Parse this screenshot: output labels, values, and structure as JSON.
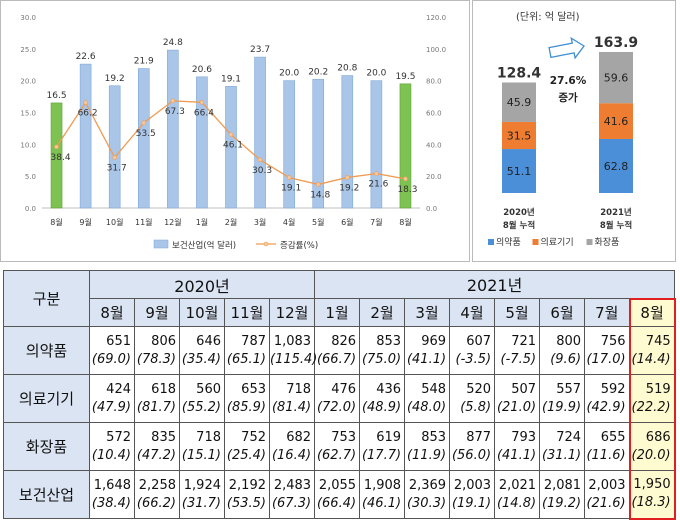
{
  "chart_data": [
    {
      "type": "bar+line",
      "categories": [
        "8월",
        "9월",
        "10월",
        "11월",
        "12월",
        "1월",
        "2월",
        "3월",
        "4월",
        "5월",
        "6월",
        "7월",
        "8월"
      ],
      "series": [
        {
          "name": "보건산업(억 달러)",
          "kind": "bar",
          "axis": "left",
          "values": [
            16.5,
            22.6,
            19.2,
            21.9,
            24.8,
            20.6,
            19.1,
            23.7,
            20.0,
            20.2,
            20.8,
            20.0,
            19.5
          ]
        },
        {
          "name": "증감률(%)",
          "kind": "line",
          "axis": "right",
          "values": [
            38.4,
            66.2,
            31.7,
            53.5,
            67.3,
            66.4,
            46.1,
            30.3,
            19.1,
            14.8,
            19.2,
            21.6,
            18.3
          ]
        }
      ],
      "highlighted_categories": [
        0,
        12
      ],
      "left_axis": {
        "ylim": [
          0,
          30
        ],
        "ticks": [
          "0.0",
          "5.0",
          "10.0",
          "15.0",
          "20.0",
          "25.0",
          "30.0"
        ]
      },
      "right_axis": {
        "ylim": [
          0,
          120
        ],
        "ticks": [
          "0.0",
          "20.0",
          "40.0",
          "60.0",
          "80.0",
          "100.0",
          "120.0"
        ]
      },
      "legend_position": "bottom",
      "grid": false
    },
    {
      "type": "stacked-bar",
      "unit_note": "(단위: 억 달러)",
      "categories": [
        "2020년\n8월 누적",
        "2021년\n8월 누적"
      ],
      "category_lines": [
        [
          "2020년",
          "8월 누적"
        ],
        [
          "2021년",
          "8월 누적"
        ]
      ],
      "series": [
        {
          "name": "의약품",
          "values": [
            51.1,
            62.8
          ]
        },
        {
          "name": "의료기기",
          "values": [
            31.5,
            41.6
          ]
        },
        {
          "name": "화장품",
          "values": [
            45.9,
            59.6
          ]
        }
      ],
      "totals": [
        "128.4",
        "163.9"
      ],
      "annotation": {
        "line1": "27.6%",
        "line2": "증가"
      },
      "legend_position": "bottom"
    }
  ],
  "table": {
    "corner": "구분",
    "years": [
      {
        "label": "2020년",
        "span": 5
      },
      {
        "label": "2021년",
        "span": 8
      }
    ],
    "months": [
      "8월",
      "9월",
      "10월",
      "11월",
      "12월",
      "1월",
      "2월",
      "3월",
      "4월",
      "5월",
      "6월",
      "7월",
      "8월"
    ],
    "rows": [
      {
        "label": "의약품",
        "values": [
          "651",
          "806",
          "646",
          "787",
          "1,083",
          "826",
          "853",
          "969",
          "607",
          "721",
          "800",
          "756",
          "745"
        ],
        "rates": [
          "(69.0)",
          "(78.3)",
          "(35.4)",
          "(65.1)",
          "(115.4)",
          "(66.7)",
          "(75.0)",
          "(41.1)",
          "(-3.5)",
          "(-7.5)",
          "(9.6)",
          "(17.0)",
          "(14.4)"
        ]
      },
      {
        "label": "의료기기",
        "values": [
          "424",
          "618",
          "560",
          "653",
          "718",
          "476",
          "436",
          "548",
          "520",
          "507",
          "557",
          "592",
          "519"
        ],
        "rates": [
          "(47.9)",
          "(81.7)",
          "(55.2)",
          "(85.9)",
          "(81.4)",
          "(72.0)",
          "(48.9)",
          "(48.0)",
          "(5.8)",
          "(21.0)",
          "(19.9)",
          "(42.9)",
          "(22.2)"
        ]
      },
      {
        "label": "화장품",
        "values": [
          "572",
          "835",
          "718",
          "752",
          "682",
          "753",
          "619",
          "853",
          "877",
          "793",
          "724",
          "655",
          "686"
        ],
        "rates": [
          "(10.4)",
          "(47.2)",
          "(15.1)",
          "(25.4)",
          "(16.4)",
          "(62.7)",
          "(17.7)",
          "(11.9)",
          "(56.0)",
          "(41.1)",
          "(31.1)",
          "(11.6)",
          "(20.0)"
        ]
      },
      {
        "label": "보건산업",
        "values": [
          "1,648",
          "2,258",
          "1,924",
          "2,192",
          "2,483",
          "2,055",
          "1,908",
          "2,369",
          "2,003",
          "2,021",
          "2,081",
          "2,003",
          "1,950"
        ],
        "rates": [
          "(38.4)",
          "(66.2)",
          "(31.7)",
          "(53.5)",
          "(67.3)",
          "(66.4)",
          "(46.1)",
          "(30.3)",
          "(19.1)",
          "(14.8)",
          "(19.2)",
          "(21.6)",
          "(18.3)"
        ]
      }
    ]
  },
  "colors": {
    "bar_blue": "#a9c6e8",
    "bar_green": "#7ec252",
    "line_orange": "#ef9b52",
    "pharma": "#4a8fd8",
    "device": "#ee7d31",
    "cosmetic": "#a5a5a5",
    "header_bg": "#dbe4f2",
    "highlight_border": "#e02020",
    "highlight_bg": "#fffbd0"
  }
}
